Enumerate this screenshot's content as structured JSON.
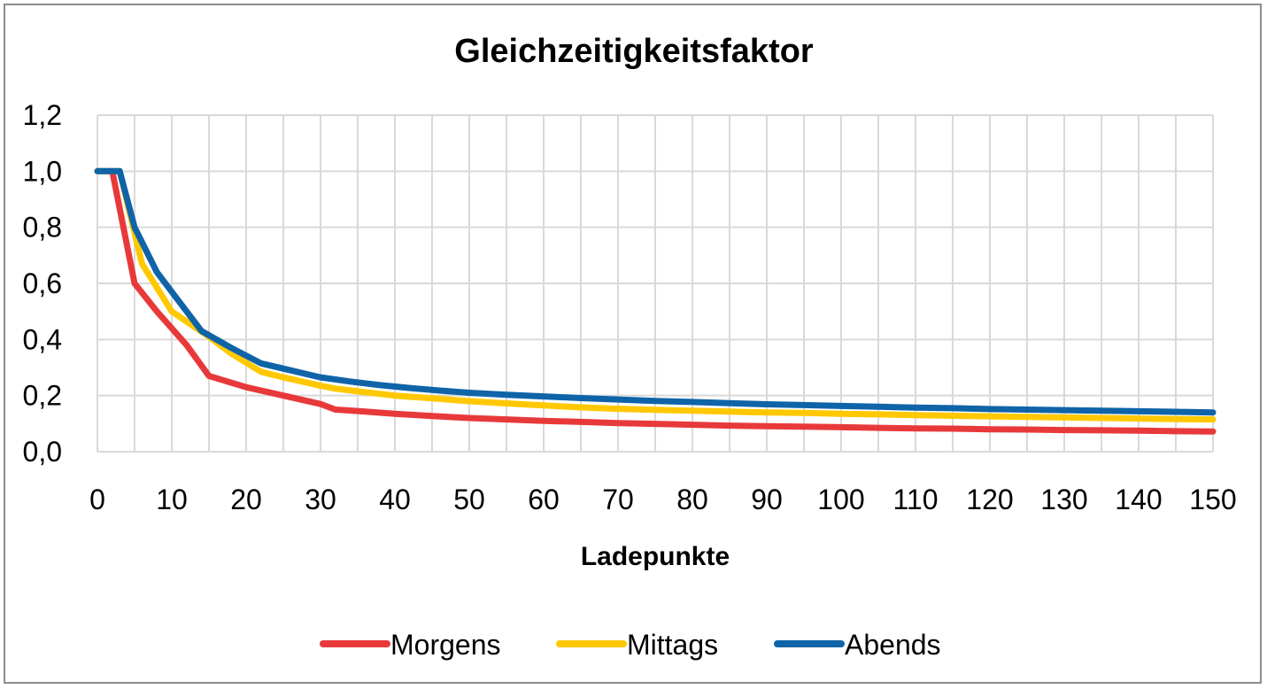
{
  "chart_data": {
    "type": "line",
    "title": "Gleichzeitigkeitsfaktor",
    "xlabel": "Ladepunkte",
    "ylabel": "",
    "xlim": [
      0,
      150
    ],
    "ylim": [
      0,
      1.2
    ],
    "x_ticks": [
      0,
      10,
      20,
      30,
      40,
      50,
      60,
      70,
      80,
      90,
      100,
      110,
      120,
      130,
      140,
      150
    ],
    "x_tick_labels": [
      "0",
      "10",
      "20",
      "30",
      "40",
      "50",
      "60",
      "70",
      "80",
      "90",
      "100",
      "110",
      "120",
      "130",
      "140",
      "150"
    ],
    "y_ticks": [
      0,
      0.2,
      0.4,
      0.6,
      0.8,
      1.0,
      1.2
    ],
    "y_tick_labels": [
      "0,0",
      "0,2",
      "0,4",
      "0,6",
      "0,8",
      "1,0",
      "1,2"
    ],
    "grid": true,
    "legend_position": "bottom",
    "series": [
      {
        "name": "Morgens",
        "color": "#e8393a",
        "x": [
          0,
          2,
          5,
          8,
          12,
          15,
          20,
          25,
          30,
          32,
          35,
          40,
          45,
          50,
          55,
          60,
          65,
          70,
          75,
          80,
          85,
          90,
          95,
          100,
          105,
          110,
          115,
          120,
          125,
          130,
          135,
          140,
          145,
          150
        ],
        "y": [
          1.0,
          1.0,
          0.6,
          0.5,
          0.38,
          0.27,
          0.23,
          0.2,
          0.17,
          0.15,
          0.145,
          0.135,
          0.127,
          0.12,
          0.115,
          0.11,
          0.106,
          0.102,
          0.099,
          0.096,
          0.093,
          0.091,
          0.089,
          0.087,
          0.085,
          0.083,
          0.082,
          0.08,
          0.079,
          0.077,
          0.076,
          0.075,
          0.073,
          0.072
        ]
      },
      {
        "name": "Mittags",
        "color": "#ffc800",
        "x": [
          0,
          3,
          6,
          10,
          15,
          18,
          22,
          25,
          30,
          32,
          35,
          40,
          45,
          50,
          55,
          60,
          65,
          70,
          75,
          80,
          85,
          90,
          95,
          100,
          105,
          110,
          115,
          120,
          125,
          130,
          135,
          140,
          145,
          150
        ],
        "y": [
          1.0,
          1.0,
          0.67,
          0.5,
          0.41,
          0.35,
          0.285,
          0.265,
          0.235,
          0.225,
          0.215,
          0.2,
          0.19,
          0.18,
          0.172,
          0.165,
          0.158,
          0.153,
          0.149,
          0.146,
          0.143,
          0.14,
          0.138,
          0.135,
          0.133,
          0.13,
          0.128,
          0.126,
          0.124,
          0.122,
          0.12,
          0.118,
          0.116,
          0.115
        ]
      },
      {
        "name": "Abends",
        "color": "#0f64a8",
        "x": [
          0,
          3,
          5,
          8,
          12,
          14,
          18,
          22,
          26,
          30,
          34,
          38,
          42,
          46,
          50,
          55,
          60,
          65,
          70,
          75,
          80,
          85,
          90,
          95,
          100,
          105,
          110,
          115,
          120,
          125,
          130,
          135,
          140,
          145,
          150
        ],
        "y": [
          1.0,
          1.0,
          0.8,
          0.64,
          0.5,
          0.43,
          0.37,
          0.315,
          0.29,
          0.265,
          0.25,
          0.237,
          0.227,
          0.218,
          0.21,
          0.203,
          0.197,
          0.191,
          0.186,
          0.181,
          0.177,
          0.173,
          0.169,
          0.166,
          0.163,
          0.16,
          0.157,
          0.155,
          0.152,
          0.15,
          0.148,
          0.146,
          0.144,
          0.142,
          0.14
        ]
      }
    ]
  }
}
